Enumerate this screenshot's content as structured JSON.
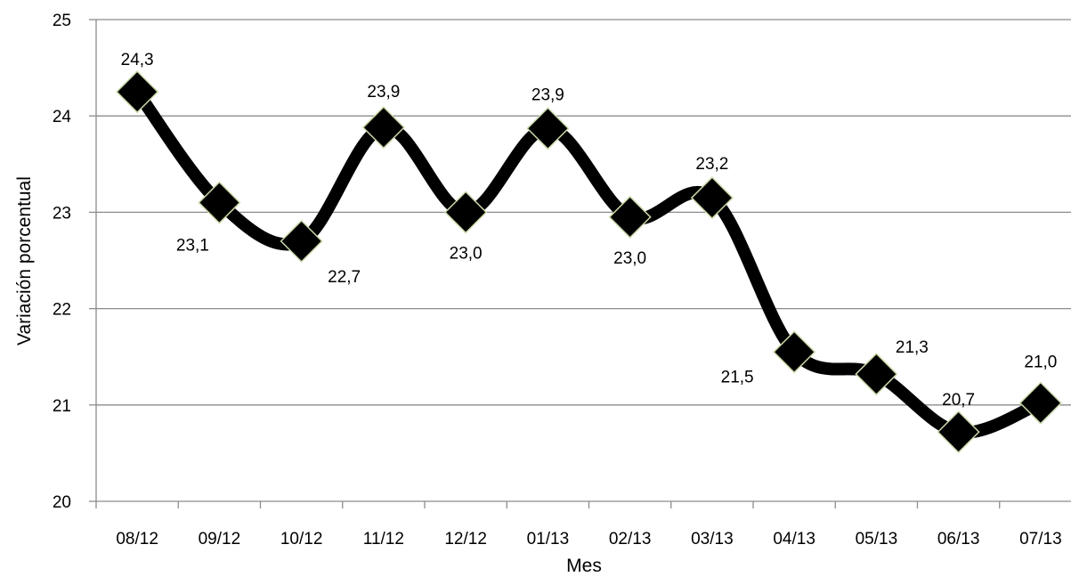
{
  "chart_data": {
    "type": "line",
    "title": "",
    "xlabel": "Mes",
    "ylabel": "Variación porcentual",
    "categories": [
      "08/12",
      "09/12",
      "10/12",
      "11/12",
      "12/12",
      "01/13",
      "02/13",
      "03/13",
      "04/13",
      "05/13",
      "06/13",
      "07/13"
    ],
    "series": [
      {
        "values": [
          24.25,
          23.1,
          22.7,
          23.88,
          23.0,
          23.87,
          22.95,
          23.15,
          21.55,
          21.32,
          20.72,
          21.02
        ],
        "labels": [
          "24,3",
          "23,1",
          "22,7",
          "23,9",
          "23,0",
          "23,9",
          "23,0",
          "23,2",
          "21,5",
          "21,3",
          "20,7",
          "21,0"
        ]
      }
    ],
    "ylim": [
      20,
      25
    ],
    "yticks": [
      "20",
      "21",
      "22",
      "23",
      "24",
      "25"
    ],
    "grid": true,
    "smooth": true,
    "marker": "diamond",
    "line_color": "#000000",
    "grid_color": "#8c8c8c",
    "axis_color": "#8c8c8c",
    "marker_edge_color": "#c8d8a8"
  }
}
